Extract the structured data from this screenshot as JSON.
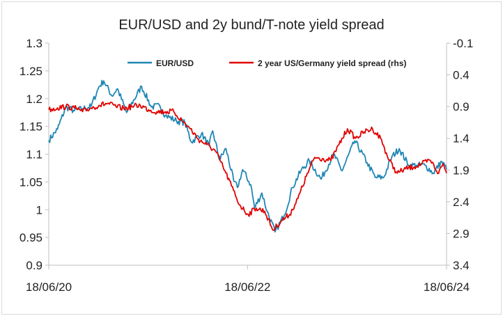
{
  "chart_data": {
    "type": "line",
    "title": "EUR/USD and 2y bund/T-note yield spread",
    "x_ticks": [
      "18/06/20",
      "18/06/22",
      "18/06/24"
    ],
    "x_range": [
      "2020-06-18",
      "2024-06-18"
    ],
    "y_left": {
      "ticks": [
        "1.3",
        "1.25",
        "1.2",
        "1.15",
        "1.1",
        "1.05",
        "1",
        "0.95",
        "0.9"
      ],
      "min": 0.9,
      "max": 1.3
    },
    "y_right": {
      "ticks": [
        "-0.1",
        "0.4",
        "0.9",
        "1.4",
        "1.9",
        "2.4",
        "2.9",
        "3.4"
      ],
      "min": -0.1,
      "max": 3.4,
      "inverted": true
    },
    "grid": false,
    "legend_position": "top",
    "series": [
      {
        "name": "EUR/USD",
        "axis": "left",
        "color": "#1f86b4",
        "points": [
          [
            "2020-06-18",
            1.125
          ],
          [
            "2020-07-20",
            1.145
          ],
          [
            "2020-08-20",
            1.185
          ],
          [
            "2020-09-20",
            1.178
          ],
          [
            "2020-10-20",
            1.182
          ],
          [
            "2020-11-20",
            1.186
          ],
          [
            "2020-12-20",
            1.222
          ],
          [
            "2021-01-06",
            1.232
          ],
          [
            "2021-02-05",
            1.205
          ],
          [
            "2021-02-25",
            1.218
          ],
          [
            "2021-03-31",
            1.175
          ],
          [
            "2021-05-25",
            1.222
          ],
          [
            "2021-06-30",
            1.185
          ],
          [
            "2021-07-31",
            1.187
          ],
          [
            "2021-08-20",
            1.17
          ],
          [
            "2021-09-30",
            1.16
          ],
          [
            "2021-10-31",
            1.157
          ],
          [
            "2021-11-24",
            1.122
          ],
          [
            "2021-12-31",
            1.137
          ],
          [
            "2022-01-28",
            1.115
          ],
          [
            "2022-02-10",
            1.142
          ],
          [
            "2022-03-07",
            1.09
          ],
          [
            "2022-03-31",
            1.11
          ],
          [
            "2022-04-28",
            1.052
          ],
          [
            "2022-05-12",
            1.04
          ],
          [
            "2022-05-31",
            1.072
          ],
          [
            "2022-06-30",
            1.045
          ],
          [
            "2022-07-14",
            1.003
          ],
          [
            "2022-08-10",
            1.03
          ],
          [
            "2022-08-29",
            0.997
          ],
          [
            "2022-09-27",
            0.96
          ],
          [
            "2022-10-31",
            0.99
          ],
          [
            "2022-11-30",
            1.04
          ],
          [
            "2022-12-31",
            1.07
          ],
          [
            "2023-01-31",
            1.088
          ],
          [
            "2023-03-15",
            1.055
          ],
          [
            "2023-04-30",
            1.1
          ],
          [
            "2023-05-31",
            1.07
          ],
          [
            "2023-07-17",
            1.124
          ],
          [
            "2023-08-31",
            1.085
          ],
          [
            "2023-09-30",
            1.058
          ],
          [
            "2023-10-31",
            1.058
          ],
          [
            "2023-11-30",
            1.095
          ],
          [
            "2023-12-27",
            1.11
          ],
          [
            "2024-01-31",
            1.08
          ],
          [
            "2024-02-29",
            1.08
          ],
          [
            "2024-03-31",
            1.08
          ],
          [
            "2024-04-30",
            1.066
          ],
          [
            "2024-05-31",
            1.087
          ],
          [
            "2024-06-18",
            1.073
          ]
        ]
      },
      {
        "name": "2 year US/Germany yield spread (rhs)",
        "axis": "right",
        "color": "#e00000",
        "points": [
          [
            "2020-06-18",
            0.95
          ],
          [
            "2020-07-20",
            0.92
          ],
          [
            "2020-08-20",
            0.9
          ],
          [
            "2020-09-20",
            0.92
          ],
          [
            "2020-10-20",
            0.98
          ],
          [
            "2020-11-20",
            0.92
          ],
          [
            "2020-12-20",
            0.88
          ],
          [
            "2021-01-20",
            0.85
          ],
          [
            "2021-02-20",
            0.9
          ],
          [
            "2021-03-20",
            0.93
          ],
          [
            "2021-04-20",
            0.9
          ],
          [
            "2021-05-20",
            0.88
          ],
          [
            "2021-06-20",
            0.95
          ],
          [
            "2021-07-20",
            0.98
          ],
          [
            "2021-08-20",
            0.98
          ],
          [
            "2021-09-20",
            0.98
          ],
          [
            "2021-10-20",
            1.12
          ],
          [
            "2021-11-20",
            1.25
          ],
          [
            "2021-12-20",
            1.42
          ],
          [
            "2022-01-20",
            1.5
          ],
          [
            "2022-02-20",
            1.6
          ],
          [
            "2022-03-20",
            1.85
          ],
          [
            "2022-04-20",
            2.15
          ],
          [
            "2022-05-20",
            2.45
          ],
          [
            "2022-06-20",
            2.6
          ],
          [
            "2022-07-20",
            2.5
          ],
          [
            "2022-08-20",
            2.55
          ],
          [
            "2022-09-20",
            2.85
          ],
          [
            "2022-10-20",
            2.7
          ],
          [
            "2022-11-20",
            2.6
          ],
          [
            "2022-12-20",
            2.35
          ],
          [
            "2023-01-20",
            2.0
          ],
          [
            "2023-02-20",
            1.7
          ],
          [
            "2023-03-20",
            1.72
          ],
          [
            "2023-04-20",
            1.75
          ],
          [
            "2023-05-20",
            1.5
          ],
          [
            "2023-06-20",
            1.25
          ],
          [
            "2023-07-20",
            1.4
          ],
          [
            "2023-08-20",
            1.3
          ],
          [
            "2023-09-20",
            1.25
          ],
          [
            "2023-10-20",
            1.4
          ],
          [
            "2023-11-20",
            1.75
          ],
          [
            "2023-12-20",
            1.95
          ],
          [
            "2024-01-20",
            1.88
          ],
          [
            "2024-02-20",
            1.85
          ],
          [
            "2024-03-20",
            1.8
          ],
          [
            "2024-04-20",
            1.75
          ],
          [
            "2024-05-20",
            1.95
          ],
          [
            "2024-06-05",
            1.8
          ],
          [
            "2024-06-18",
            1.95
          ]
        ]
      }
    ]
  }
}
